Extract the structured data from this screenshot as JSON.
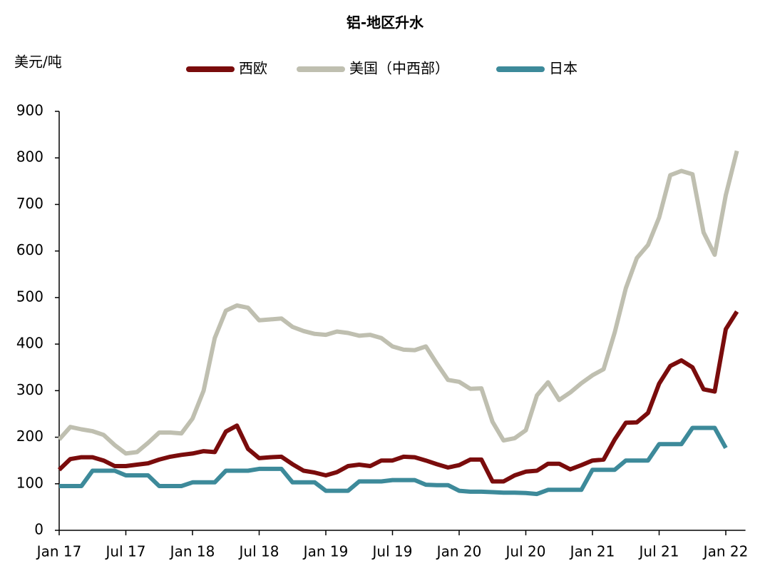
{
  "chart_data": {
    "type": "line",
    "title": "铝-地区升水",
    "y_label": "美元/吨",
    "categories": [
      "Jan 17",
      null,
      null,
      null,
      null,
      null,
      "Jul 17",
      null,
      null,
      null,
      null,
      null,
      "Jan 18",
      null,
      null,
      null,
      null,
      null,
      "Jul 18",
      null,
      null,
      null,
      null,
      null,
      "Jan 19",
      null,
      null,
      null,
      null,
      null,
      "Jul 19",
      null,
      null,
      null,
      null,
      null,
      "Jan 20",
      null,
      null,
      null,
      null,
      null,
      "Jul 20",
      null,
      null,
      null,
      null,
      null,
      "Jan 21",
      null,
      null,
      null,
      null,
      null,
      "Jul 21",
      null,
      null,
      null,
      null,
      null,
      "Jan 22",
      null
    ],
    "series": [
      {
        "name": "西欧",
        "color": "#7a0c0c",
        "values": [
          130,
          153,
          157,
          157,
          150,
          138,
          138,
          141,
          144,
          152,
          158,
          162,
          165,
          170,
          168,
          212,
          225,
          175,
          155,
          157,
          158,
          142,
          128,
          124,
          118,
          125,
          138,
          141,
          138,
          150,
          150,
          158,
          157,
          150,
          142,
          135,
          140,
          152,
          152,
          105,
          105,
          118,
          126,
          128,
          143,
          143,
          131,
          140,
          150,
          152,
          195,
          231,
          232,
          252,
          315,
          353,
          365,
          350,
          303,
          298,
          432,
          470
        ]
      },
      {
        "name": "美国（中西部）",
        "color": "#bfbfb0",
        "values": [
          195,
          222,
          217,
          213,
          205,
          183,
          165,
          168,
          188,
          210,
          210,
          208,
          240,
          300,
          413,
          472,
          483,
          478,
          451,
          453,
          455,
          437,
          428,
          422,
          420,
          427,
          424,
          418,
          420,
          413,
          395,
          388,
          387,
          395,
          358,
          323,
          319,
          304,
          305,
          233,
          193,
          198,
          215,
          290,
          318,
          280,
          296,
          316,
          333,
          346,
          425,
          520,
          585,
          613,
          672,
          763,
          772,
          765,
          640,
          592,
          720,
          815
        ]
      },
      {
        "name": "日本",
        "color": "#3d8a9a",
        "values": [
          95,
          95,
          95,
          128,
          128,
          128,
          118,
          118,
          118,
          95,
          95,
          95,
          103,
          103,
          103,
          128,
          128,
          128,
          132,
          132,
          132,
          103,
          103,
          103,
          85,
          85,
          85,
          105,
          105,
          105,
          108,
          108,
          108,
          98,
          97,
          97,
          85,
          83,
          83,
          82,
          81,
          81,
          80,
          78,
          87,
          87,
          87,
          87,
          130,
          130,
          130,
          150,
          150,
          150,
          185,
          185,
          185,
          220,
          220,
          220,
          177,
          null
        ]
      }
    ],
    "ylim": [
      0,
      900
    ],
    "yticks": [
      0,
      100,
      200,
      300,
      400,
      500,
      600,
      700,
      800,
      900
    ],
    "grid": false
  }
}
